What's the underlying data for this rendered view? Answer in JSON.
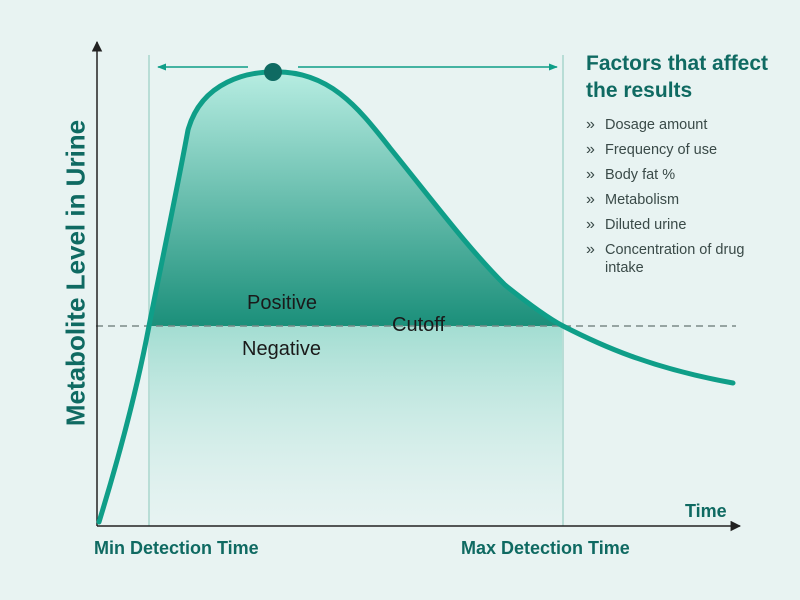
{
  "chart": {
    "y_axis_label": "Metabolite Level in Urine",
    "x_axis_label": "Time",
    "min_detection_label": "Min Detection Time",
    "max_detection_label": "Max Detection Time",
    "positive_label": "Positive",
    "negative_label": "Negative",
    "cutoff_label": "Cutoff"
  },
  "factors": {
    "title": "Factors that affect the results",
    "items": [
      {
        "icon": "double-chevron-right-icon",
        "text": "Dosage amount"
      },
      {
        "icon": "double-chevron-right-icon",
        "text": "Frequency of use"
      },
      {
        "icon": "double-chevron-right-icon",
        "text": "Body fat %"
      },
      {
        "icon": "double-chevron-right-icon",
        "text": "Metabolism"
      },
      {
        "icon": "double-chevron-right-icon",
        "text": "Diluted urine"
      },
      {
        "icon": "double-chevron-right-icon",
        "text": "Concentration of drug intake"
      }
    ]
  },
  "colors": {
    "background": "#e8f3f2",
    "curve": "#0f9e88",
    "peak_marker": "#0f6a62",
    "title": "#0f6a62",
    "cutoff_line": "#7a8a88"
  }
}
